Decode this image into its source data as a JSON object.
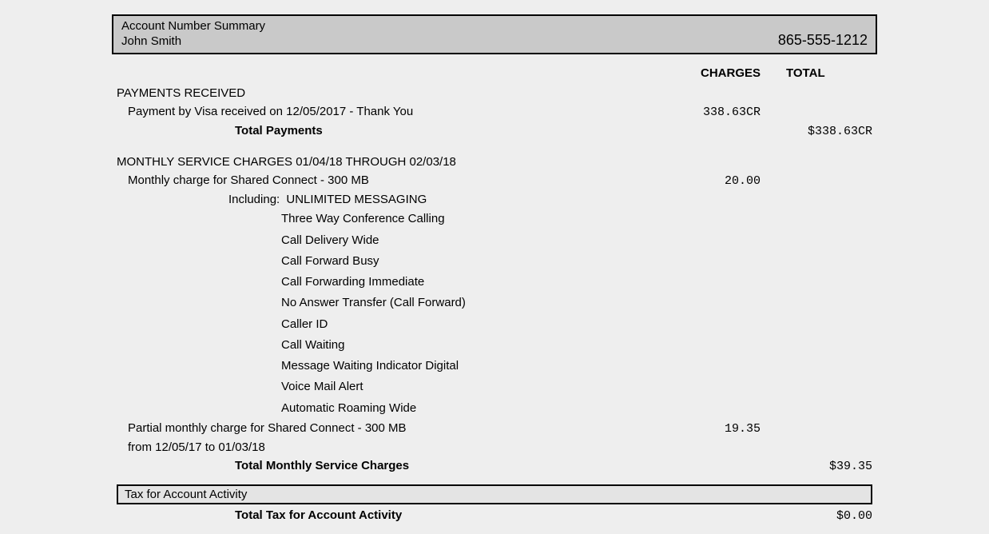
{
  "header": {
    "title": "Account Number Summary",
    "name": "John Smith",
    "phone": "865-555-1212"
  },
  "columns": {
    "charges": "CHARGES",
    "total": "TOTAL"
  },
  "payments": {
    "section": "PAYMENTS RECEIVED",
    "line": "Payment by Visa received on 12/05/2017 - Thank You",
    "line_charge": "338.63CR",
    "total_label": "Total Payments",
    "total_value": "$338.63CR"
  },
  "service": {
    "section": "MONTHLY SERVICE CHARGES  01/04/18   THROUGH    02/03/18",
    "monthly_line": "Monthly charge for Shared Connect - 300 MB",
    "monthly_charge": "20.00",
    "including_label": "Including:",
    "including_first": "UNLIMITED MESSAGING",
    "features": [
      "Three Way Conference Calling",
      "Call Delivery Wide",
      "Call Forward Busy",
      "Call Forwarding Immediate",
      "No Answer Transfer (Call Forward)",
      "Caller ID",
      "Call Waiting",
      "Message Waiting Indicator Digital",
      "Voice Mail Alert",
      "Automatic Roaming Wide"
    ],
    "partial_line1": "Partial monthly charge for  Shared Connect - 300 MB",
    "partial_line2": "from  12/05/17  to   01/03/18",
    "partial_charge": "19.35",
    "total_label": "Total Monthly Service Charges",
    "total_value": "$39.35"
  },
  "tax": {
    "box_label": "Tax for Account Activity",
    "total_label": "Total Tax for Account Activity",
    "total_value": "$0.00"
  }
}
